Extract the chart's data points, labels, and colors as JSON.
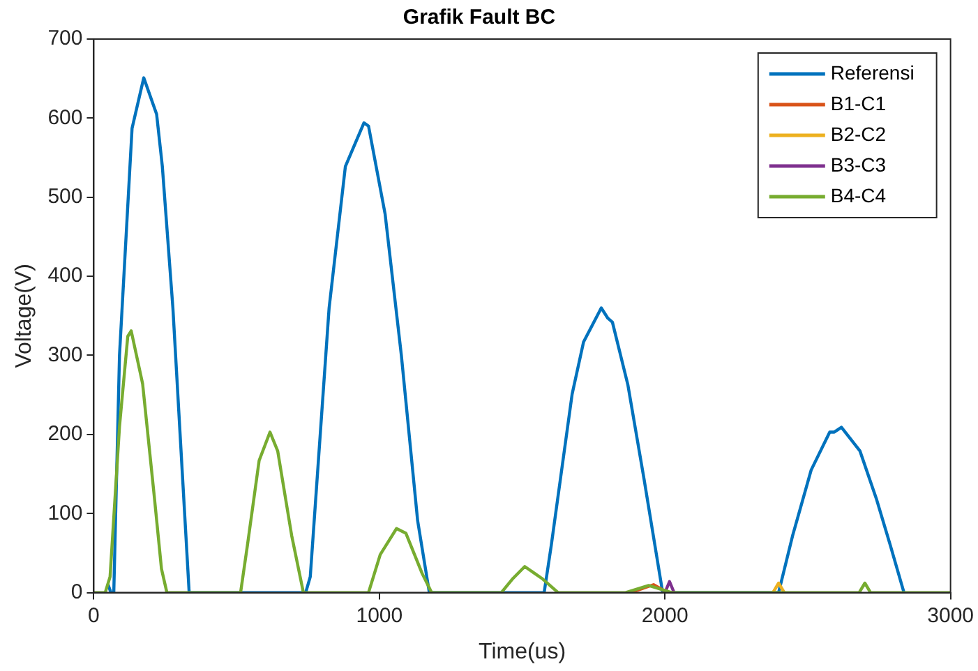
{
  "chart_data": {
    "type": "line",
    "title": "Grafik Fault BC",
    "xlabel": "Time(us)",
    "ylabel": "Voltage(V)",
    "xlim": [
      0,
      3000
    ],
    "xticks": [
      0,
      1000,
      2000,
      3000
    ],
    "ylim": [
      0,
      700
    ],
    "yticks": [
      0,
      100,
      200,
      300,
      400,
      500,
      600,
      700
    ],
    "grid": false,
    "legend": "top right",
    "marker": "none",
    "line_style": "solid",
    "series": [
      {
        "name": "Referensi",
        "color": "#0072bd",
        "x": [
          50,
          60,
          70,
          90,
          134,
          175,
          220,
          240,
          277,
          310,
          334,
          742,
          758,
          824,
          881,
          946,
          962,
          1020,
          1077,
          1134,
          1175,
          1577,
          1602,
          1675,
          1715,
          1777,
          1800,
          1816,
          1870,
          1927,
          1992,
          2398,
          2447,
          2512,
          2577,
          2593,
          2618,
          2683,
          2740,
          2789,
          2837
        ],
        "values": [
          10,
          0,
          0,
          300,
          587,
          651,
          605,
          539,
          360,
          151,
          0,
          0,
          20,
          360,
          539,
          594,
          590,
          479,
          300,
          91,
          0,
          0,
          60,
          251,
          317,
          360,
          347,
          342,
          263,
          143,
          0,
          0,
          72,
          155,
          203,
          203,
          209,
          179,
          119,
          60,
          0
        ]
      },
      {
        "name": "B1-C1",
        "color": "#d95319",
        "x": [
          1880,
          1960,
          2010
        ],
        "values": [
          0,
          10,
          0
        ]
      },
      {
        "name": "B2-C2",
        "color": "#edb120",
        "x": [
          2378,
          2398,
          2418
        ],
        "values": [
          0,
          12,
          0
        ]
      },
      {
        "name": "B3-C3",
        "color": "#7e2f8e",
        "x": [
          2000,
          2016,
          2032
        ],
        "values": [
          0,
          14,
          0
        ]
      },
      {
        "name": "B4-C4",
        "color": "#77ac30",
        "x": [
          0,
          40,
          57,
          90,
          119,
          131,
          171,
          212,
          237,
          256,
          514,
          538,
          579,
          617,
          644,
          693,
          734,
          962,
          1003,
          1060,
          1093,
          1150,
          1183,
          1427,
          1468,
          1509,
          1569,
          1626,
          1862,
          1943,
          2024,
          2680,
          2700,
          2720,
          3000
        ],
        "values": [
          0,
          0,
          20,
          210,
          324,
          331,
          264,
          121,
          30,
          0,
          0,
          60,
          167,
          203,
          179,
          72,
          0,
          0,
          48,
          81,
          75,
          24,
          0,
          0,
          18,
          33,
          18,
          0,
          0,
          9,
          0,
          0,
          12,
          0,
          0
        ]
      }
    ]
  }
}
